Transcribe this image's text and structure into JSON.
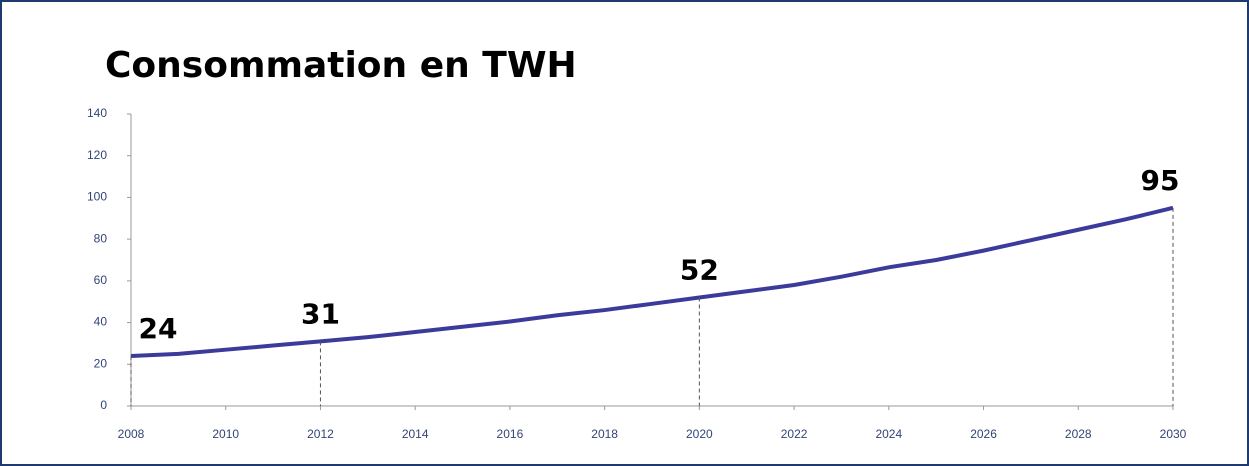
{
  "chart_data": {
    "type": "line",
    "title": "Consommation en TWH",
    "x": [
      2008,
      2009,
      2010,
      2011,
      2012,
      2013,
      2014,
      2015,
      2016,
      2017,
      2018,
      2019,
      2020,
      2021,
      2022,
      2023,
      2024,
      2025,
      2026,
      2027,
      2028,
      2029,
      2030
    ],
    "series": [
      {
        "color": "#3b3b9b",
        "values": [
          24,
          25,
          27,
          29,
          31,
          33,
          35.5,
          38,
          40.5,
          43.5,
          46,
          49,
          52,
          55,
          58,
          62,
          66.5,
          70,
          74.5,
          79.5,
          84.5,
          89.5,
          95
        ]
      }
    ],
    "annotations": [
      {
        "x": 2008,
        "y": 24
      },
      {
        "x": 2012,
        "y": 31
      },
      {
        "x": 2020,
        "y": 52
      },
      {
        "x": 2030,
        "y": 95
      }
    ],
    "xlim": [
      2008,
      2030
    ],
    "xticks": [
      2008,
      2010,
      2012,
      2014,
      2016,
      2018,
      2020,
      2022,
      2024,
      2026,
      2028,
      2030
    ],
    "ylim": [
      0,
      140
    ],
    "yticks": [
      0,
      20,
      40,
      60,
      80,
      100,
      120,
      140
    ]
  }
}
